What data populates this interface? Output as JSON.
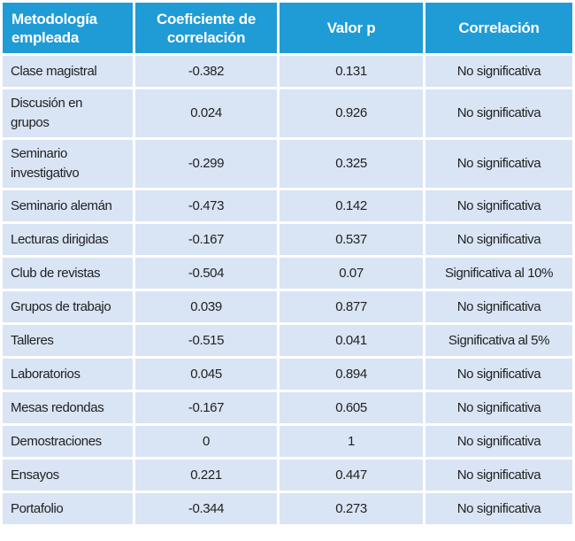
{
  "table": {
    "header": [
      "Metodología empleada",
      "Coeficiente de correlación",
      "Valor p",
      "Correlación"
    ],
    "rows": [
      [
        "Clase magistral",
        "-0.382",
        "0.131",
        "No significativa"
      ],
      [
        "Discusión en grupos",
        "0.024",
        "0.926",
        "No significativa"
      ],
      [
        "Seminario investigativo",
        "-0.299",
        "0.325",
        "No significativa"
      ],
      [
        "Seminario alemán",
        "-0.473",
        "0.142",
        "No significativa"
      ],
      [
        "Lecturas dirigidas",
        "-0.167",
        "0.537",
        "No significativa"
      ],
      [
        "Club de revistas",
        "-0.504",
        "0.07",
        "Significativa al 10%"
      ],
      [
        "Grupos de trabajo",
        "0.039",
        "0.877",
        "No significativa"
      ],
      [
        "Talleres",
        "-0.515",
        "0.041",
        "Significativa al 5%"
      ],
      [
        "Laboratorios",
        "0.045",
        "0.894",
        "No significativa"
      ],
      [
        "Mesas redondas",
        "-0.167",
        "0.605",
        "No significativa"
      ],
      [
        "Demostraciones",
        "0",
        "1",
        "No significativa"
      ],
      [
        "Ensayos",
        "0.221",
        "0.447",
        "No significativa"
      ],
      [
        "Portafolio",
        "-0.344",
        "0.273",
        "No significativa"
      ]
    ]
  }
}
